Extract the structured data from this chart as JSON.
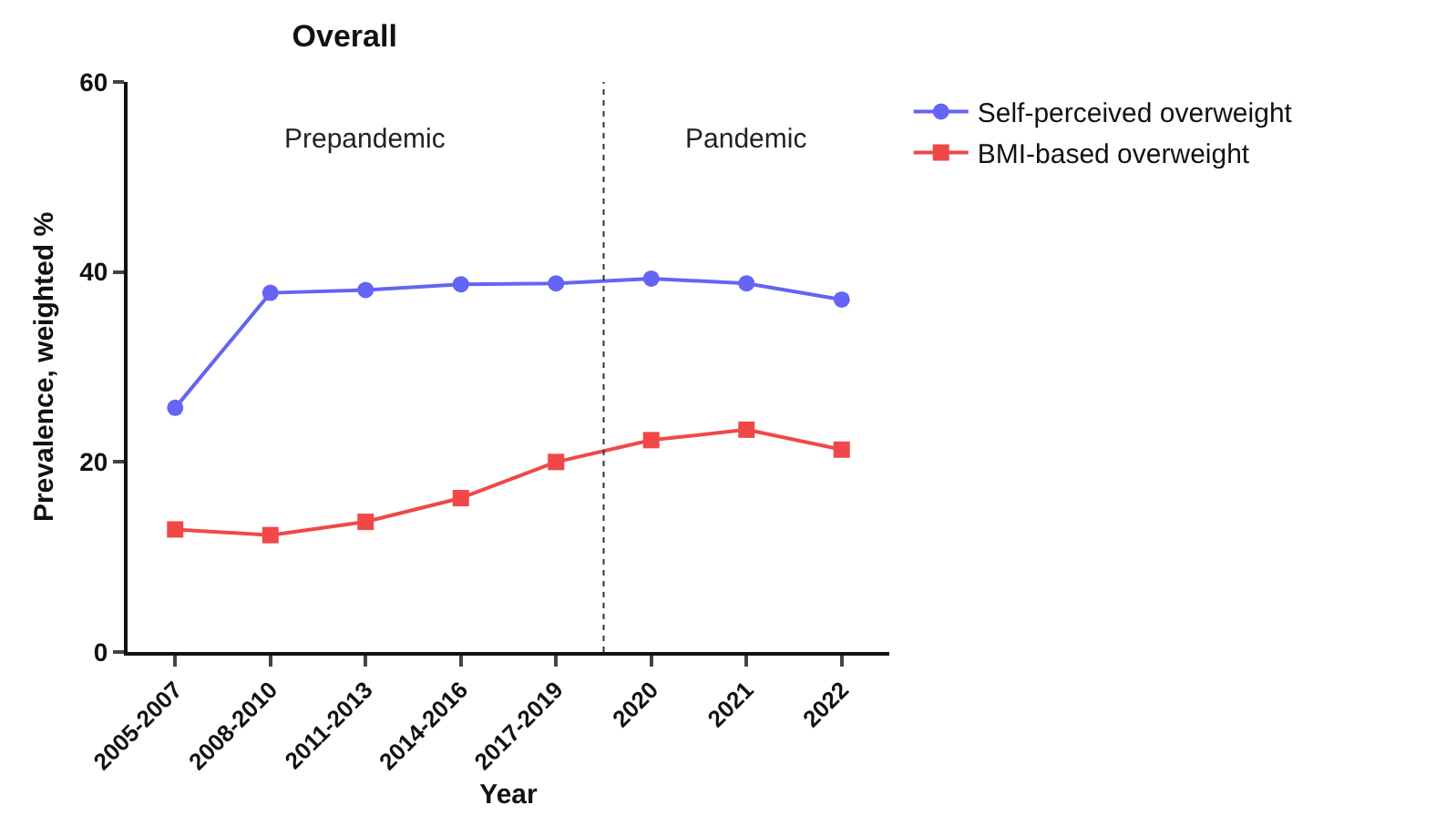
{
  "chart_data": {
    "type": "line",
    "title": "Overall",
    "xlabel": "Year",
    "ylabel": "Prevalence, weighted %",
    "categories": [
      "2005-2007",
      "2008-2010",
      "2011-2013",
      "2014-2016",
      "2017-2019",
      "2020",
      "2021",
      "2022"
    ],
    "series": [
      {
        "name": "Self-perceived overweight",
        "color": "#6464f5",
        "marker": "circle",
        "values": [
          25.7,
          37.8,
          38.1,
          38.7,
          38.8,
          39.3,
          38.8,
          37.1
        ]
      },
      {
        "name": "BMI-based overweight",
        "color": "#f04848",
        "marker": "square",
        "values": [
          12.9,
          12.3,
          13.7,
          16.2,
          20.0,
          22.3,
          23.4,
          21.3
        ]
      }
    ],
    "ylim": [
      0,
      60
    ],
    "yticks": [
      0,
      20,
      40,
      60
    ],
    "grid": false,
    "legend": "top right",
    "line_style": "solid",
    "annotations": [
      "Prepandemic",
      "Pandemic"
    ]
  }
}
